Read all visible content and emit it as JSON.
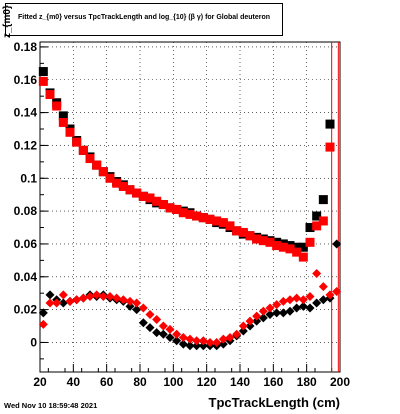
{
  "title": "Fitted  z_{m0}  versus TpcTrackLength and log_{10} (β γ) for Global deuteron",
  "footer": "Wed Nov 10 18:59:48 2021",
  "chart_data": {
    "type": "scatter",
    "title": "Fitted  z_{m0}  versus TpcTrackLength and log_{10} (β γ) for Global deuteron",
    "xlabel": "TpcTrackLength (cm)",
    "ylabel": "z_{m0}",
    "xlim": [
      20,
      200
    ],
    "ylim": [
      -0.018,
      0.183
    ],
    "xticks": [
      20,
      40,
      60,
      80,
      100,
      120,
      140,
      160,
      180,
      200
    ],
    "yticks": [
      0,
      0.02,
      0.04,
      0.06,
      0.08,
      0.1,
      0.12,
      0.14,
      0.16,
      0.18
    ],
    "ytick_labels": [
      "0",
      "0.02",
      "0.04",
      "0.06",
      "0.08",
      "0.1",
      "0.12",
      "0.14",
      "0.16",
      "0.18"
    ],
    "grid": true,
    "series": [
      {
        "marker": "square",
        "color": "#000000",
        "x": [
          22,
          26,
          30,
          34,
          38,
          42,
          46,
          50,
          54,
          58,
          62,
          66,
          70,
          74,
          78,
          82,
          86,
          90,
          94,
          98,
          102,
          106,
          110,
          114,
          118,
          122,
          126,
          130,
          134,
          138,
          142,
          146,
          150,
          154,
          158,
          162,
          166,
          170,
          174,
          178,
          182,
          186,
          190,
          194
        ],
        "y": [
          0.165,
          0.152,
          0.146,
          0.138,
          0.13,
          0.123,
          0.117,
          0.113,
          0.108,
          0.104,
          0.101,
          0.098,
          0.096,
          0.093,
          0.091,
          0.089,
          0.087,
          0.085,
          0.084,
          0.082,
          0.081,
          0.08,
          0.079,
          0.077,
          0.076,
          0.075,
          0.073,
          0.072,
          0.07,
          0.068,
          0.066,
          0.065,
          0.064,
          0.063,
          0.062,
          0.061,
          0.06,
          0.059,
          0.058,
          0.058,
          0.07,
          0.077,
          0.087,
          0.133
        ]
      },
      {
        "marker": "square",
        "color": "#ff0000",
        "x": [
          22,
          26,
          30,
          34,
          38,
          42,
          46,
          50,
          54,
          58,
          62,
          66,
          70,
          74,
          78,
          82,
          86,
          90,
          94,
          98,
          102,
          106,
          110,
          114,
          118,
          122,
          126,
          130,
          134,
          138,
          142,
          146,
          150,
          154,
          158,
          162,
          166,
          170,
          174,
          178,
          182,
          186,
          190,
          194
        ],
        "y": [
          0.159,
          0.151,
          0.144,
          0.134,
          0.128,
          0.122,
          0.117,
          0.112,
          0.108,
          0.104,
          0.1,
          0.097,
          0.095,
          0.093,
          0.091,
          0.089,
          0.088,
          0.086,
          0.084,
          0.082,
          0.081,
          0.079,
          0.078,
          0.077,
          0.076,
          0.075,
          0.074,
          0.073,
          0.071,
          0.068,
          0.067,
          0.065,
          0.063,
          0.062,
          0.061,
          0.059,
          0.058,
          0.057,
          0.055,
          0.052,
          0.061,
          0.071,
          0.074,
          0.119
        ]
      },
      {
        "marker": "diamond",
        "color": "#000000",
        "x": [
          22,
          26,
          30,
          34,
          38,
          42,
          46,
          50,
          54,
          58,
          62,
          66,
          70,
          74,
          78,
          82,
          86,
          90,
          94,
          98,
          102,
          106,
          110,
          114,
          118,
          122,
          126,
          130,
          134,
          138,
          142,
          146,
          150,
          154,
          158,
          162,
          166,
          170,
          174,
          178,
          182,
          186,
          190,
          194,
          198
        ],
        "y": [
          0.018,
          0.029,
          0.026,
          0.024,
          0.025,
          0.026,
          0.027,
          0.029,
          0.028,
          0.029,
          0.027,
          0.026,
          0.025,
          0.022,
          0.02,
          0.012,
          0.009,
          0.006,
          0.005,
          0.003,
          0.001,
          -0.001,
          -0.002,
          -0.002,
          -0.002,
          -0.002,
          -0.002,
          -0.001,
          0.001,
          0.004,
          0.007,
          0.01,
          0.013,
          0.015,
          0.017,
          0.018,
          0.018,
          0.019,
          0.021,
          0.022,
          0.021,
          0.024,
          0.026,
          0.027,
          0.06
        ]
      },
      {
        "marker": "diamond",
        "color": "#ff0000",
        "x": [
          22,
          26,
          30,
          34,
          38,
          42,
          46,
          50,
          54,
          58,
          62,
          66,
          70,
          74,
          78,
          82,
          86,
          90,
          94,
          98,
          102,
          106,
          110,
          114,
          118,
          122,
          126,
          130,
          134,
          138,
          142,
          146,
          150,
          154,
          158,
          162,
          166,
          170,
          174,
          178,
          182,
          186,
          190,
          194,
          198
        ],
        "y": [
          0.011,
          0.024,
          0.024,
          0.029,
          0.025,
          0.026,
          0.027,
          0.028,
          0.029,
          0.028,
          0.028,
          0.027,
          0.026,
          0.025,
          0.024,
          0.021,
          0.017,
          0.014,
          0.01,
          0.008,
          0.005,
          0.003,
          0.002,
          0.001,
          0.001,
          0.0,
          0.0,
          0.002,
          0.003,
          0.005,
          0.01,
          0.013,
          0.016,
          0.019,
          0.021,
          0.023,
          0.025,
          0.026,
          0.027,
          0.026,
          0.028,
          0.042,
          0.034,
          0.029,
          0.031
        ]
      }
    ],
    "vertical_lines": [
      {
        "x": 195,
        "color": "#ff0000"
      },
      {
        "x": 199,
        "color": "#ff0000"
      }
    ]
  }
}
